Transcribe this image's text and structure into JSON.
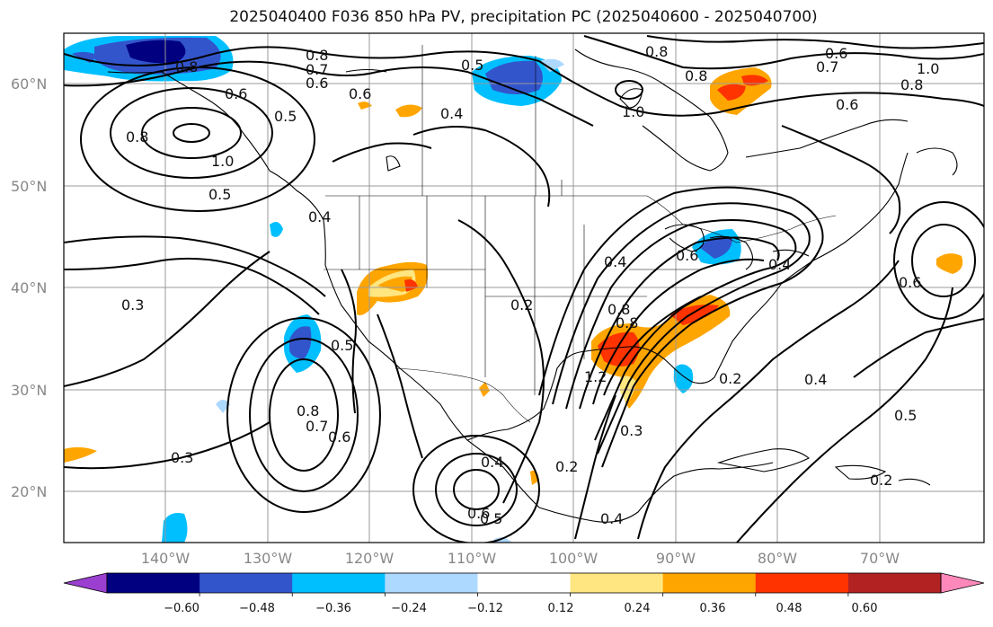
{
  "title": "2025040400 F036 850 hPa PV, precipitation PC (2025040600 - 2025040700)",
  "lat_labels": [
    "60°N",
    "50°N",
    "40°N",
    "30°N",
    "20°N"
  ],
  "lon_labels": [
    "140°W",
    "130°W",
    "120°W",
    "110°W",
    "100°W",
    "90°W",
    "80°W",
    "70°W"
  ],
  "colorbar": {
    "colors": [
      "#9a3fd0",
      "#000080",
      "#3355cc",
      "#00bfff",
      "#add8ff",
      "#ffffff",
      "#ffe680",
      "#ffa500",
      "#ff3300",
      "#b22222",
      "#ff88bb"
    ],
    "tick_labels": [
      "−0.60",
      "−0.48",
      "−0.36",
      "−0.24",
      "−0.12",
      "0.12",
      "0.24",
      "0.36",
      "0.48",
      "0.60"
    ]
  },
  "contour_labels": [
    {
      "text": "0.8"
    },
    {
      "text": "0.7"
    },
    {
      "text": "0.6"
    },
    {
      "text": "0.8"
    },
    {
      "text": "0.6"
    },
    {
      "text": "0.5"
    },
    {
      "text": "0.8"
    },
    {
      "text": "1.0"
    },
    {
      "text": "0.5"
    },
    {
      "text": "0.6"
    },
    {
      "text": "0.5"
    },
    {
      "text": "0.4"
    },
    {
      "text": "0.8"
    },
    {
      "text": "1.0"
    },
    {
      "text": "0.8"
    },
    {
      "text": "0.7"
    },
    {
      "text": "0.6"
    },
    {
      "text": "1.0"
    },
    {
      "text": "0.8"
    },
    {
      "text": "0.6"
    },
    {
      "text": "0.4"
    },
    {
      "text": "0.3"
    },
    {
      "text": "0.5"
    },
    {
      "text": "0.8"
    },
    {
      "text": "0.7"
    },
    {
      "text": "0.6"
    },
    {
      "text": "0.3"
    },
    {
      "text": "0.2"
    },
    {
      "text": "0.4"
    },
    {
      "text": "0.6"
    },
    {
      "text": "0.8"
    },
    {
      "text": "1.2"
    },
    {
      "text": "0.3"
    },
    {
      "text": "0.2"
    },
    {
      "text": "0.4"
    },
    {
      "text": "0.6"
    },
    {
      "text": "0.8"
    },
    {
      "text": "0.4"
    },
    {
      "text": "0.5"
    },
    {
      "text": "0.2"
    },
    {
      "text": "0.4"
    },
    {
      "text": "0.6"
    },
    {
      "text": "0.5"
    },
    {
      "text": "0.2"
    },
    {
      "text": "0.4"
    }
  ]
}
